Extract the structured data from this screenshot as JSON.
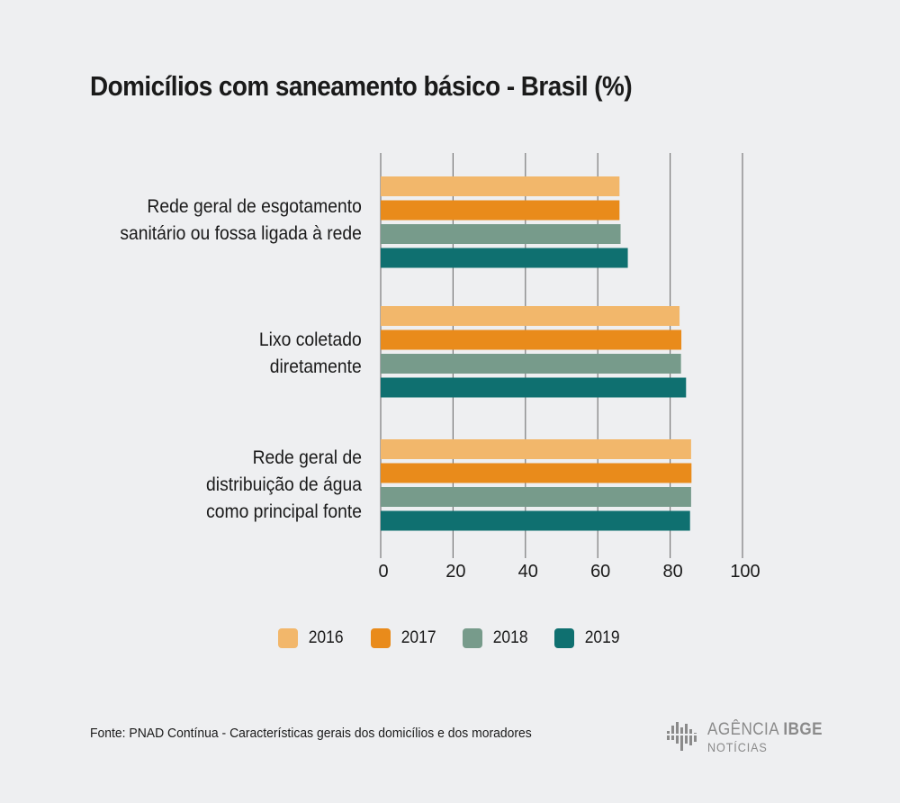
{
  "colors": {
    "background": "#eeeff1",
    "grid": "#7a7a7a",
    "text": "#1a1a1a",
    "logo": "#8a8a8a"
  },
  "chart_data": {
    "type": "bar",
    "orientation": "horizontal",
    "title": "Domicílios com saneamento básico - Brasil (%)",
    "categories": [
      [
        "Rede geral de esgotamento",
        "sanitário ou fossa ligada à rede"
      ],
      [
        "Lixo coletado",
        "diretamente"
      ],
      [
        "Rede geral de",
        "distribuição de água",
        "como principal fonte"
      ]
    ],
    "series": [
      {
        "name": "2016",
        "color": "#f2b76b",
        "values": [
          66.0,
          82.6,
          85.8
        ]
      },
      {
        "name": "2017",
        "color": "#e98b1b",
        "values": [
          66.0,
          83.1,
          85.9
        ]
      },
      {
        "name": "2018",
        "color": "#779b8b",
        "values": [
          66.3,
          83.0,
          85.8
        ]
      },
      {
        "name": "2019",
        "color": "#0f7070",
        "values": [
          68.3,
          84.4,
          85.5
        ]
      }
    ],
    "xticks": [
      "0",
      "20",
      "40",
      "60",
      "80",
      "100"
    ],
    "xlim": [
      0,
      100
    ],
    "grid": true,
    "legend_position": "bottom-center"
  },
  "footer": {
    "source": "Fonte: PNAD Contínua - Características gerais dos domicílios e dos moradores",
    "logo_word_a": "AGÊNCIA",
    "logo_word_b": "IBGE",
    "logo_sub": "NOTÍCIAS"
  }
}
